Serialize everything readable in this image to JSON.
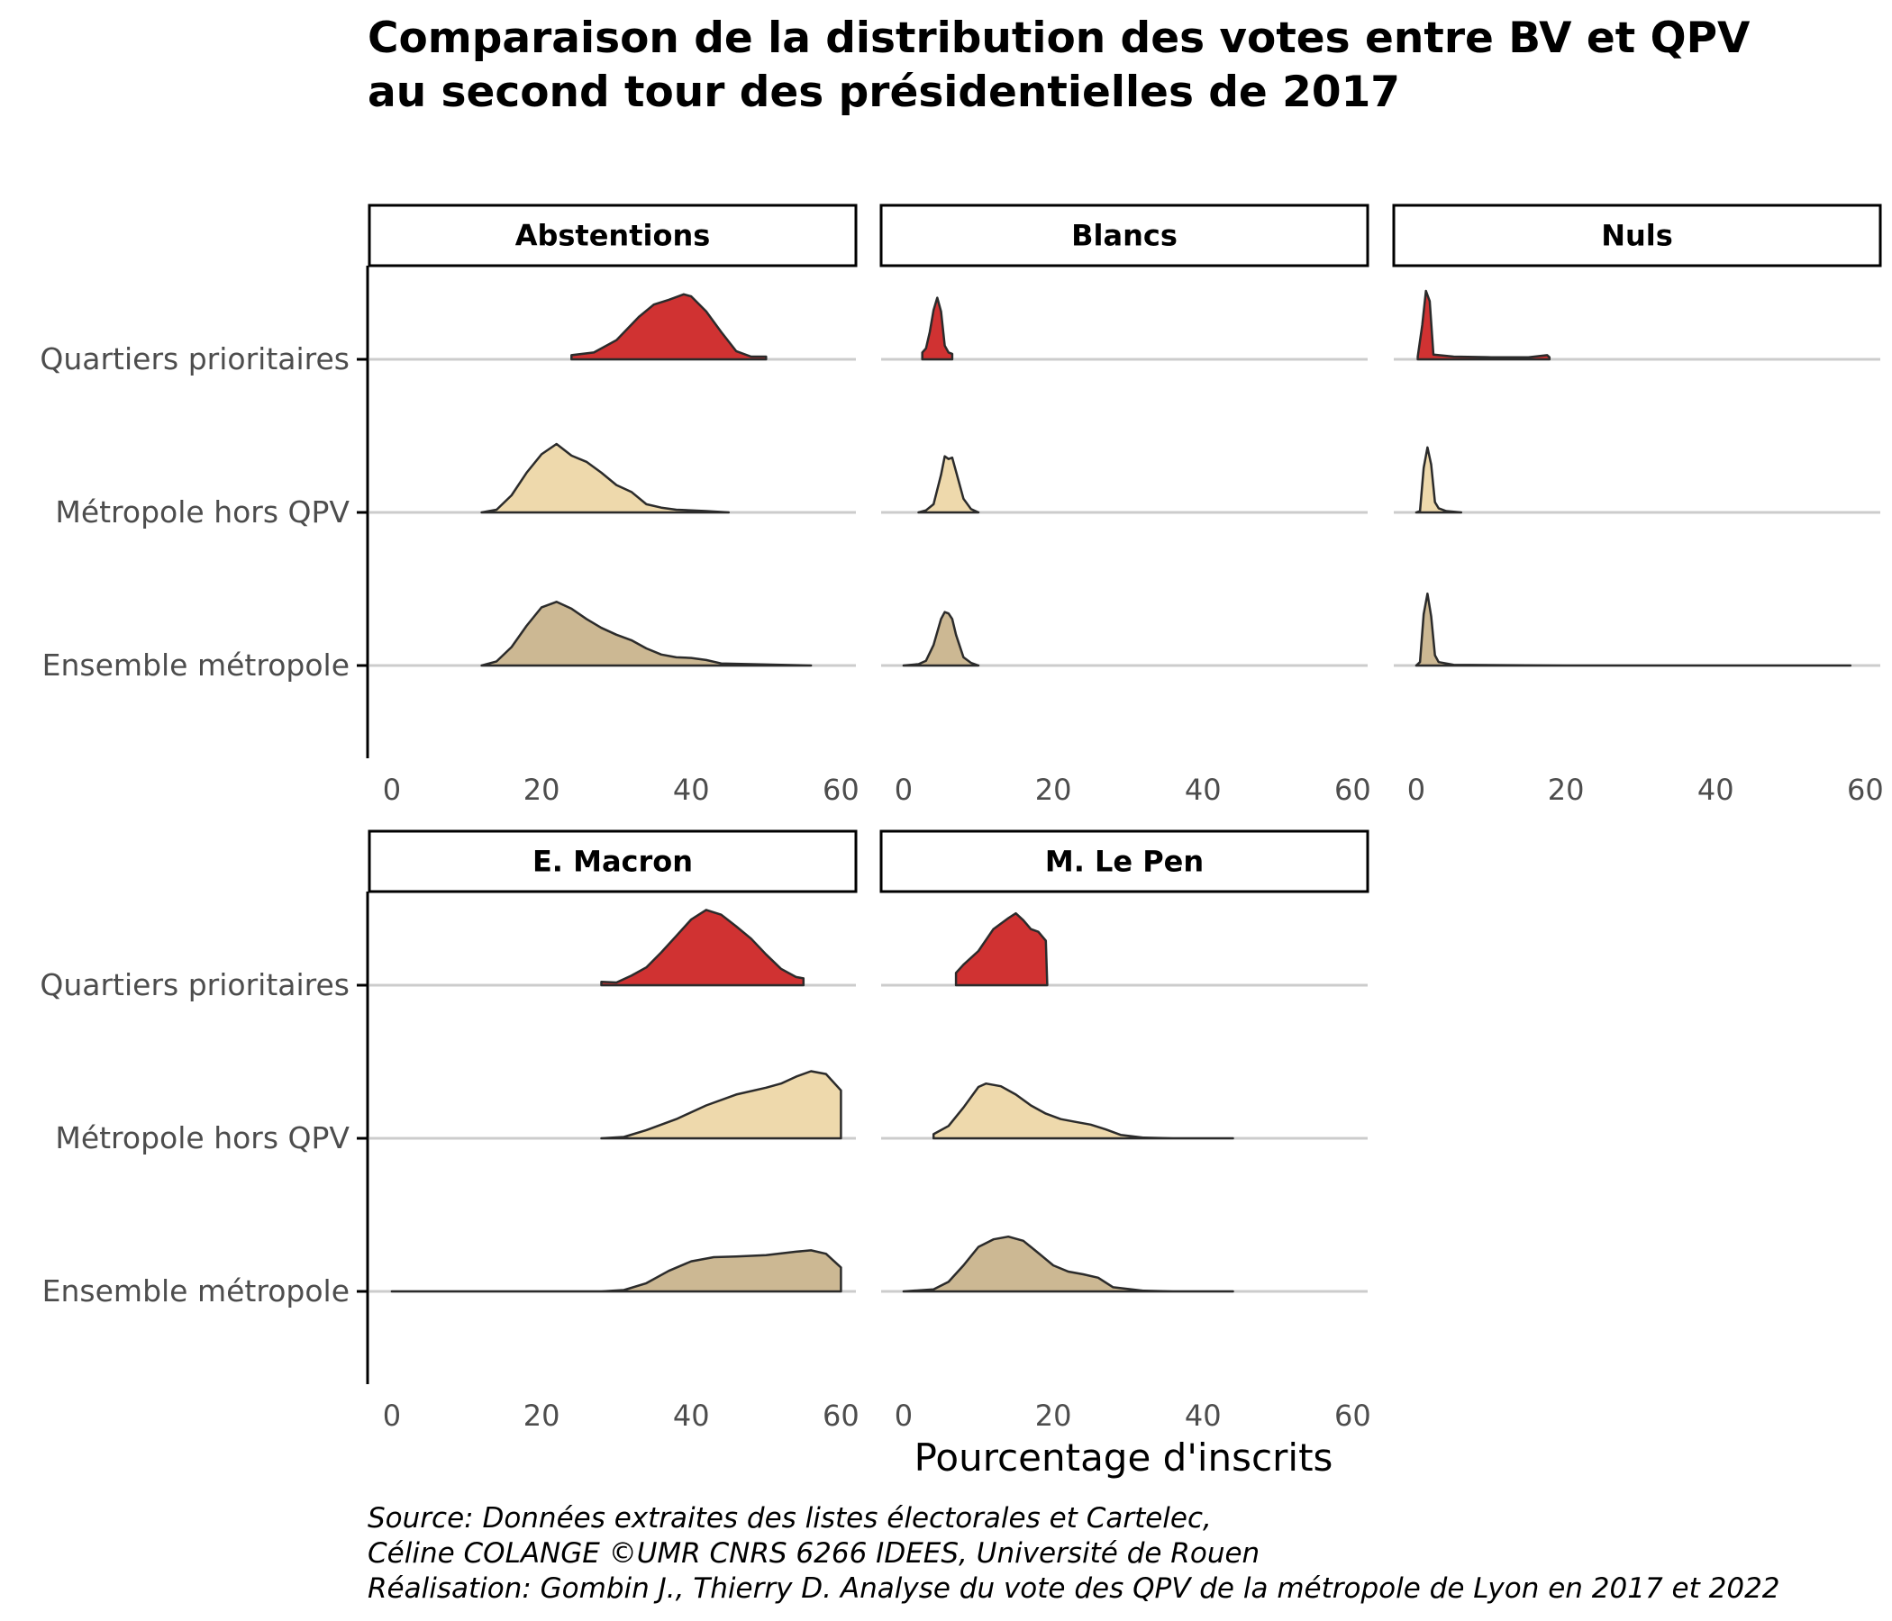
{
  "chart_data": {
    "type": "ridgeline-density",
    "title": "Comparaison de la distribution des votes entre BV et QPV",
    "title_line2": "au second tour des présidentielles de 2017",
    "xlabel": "Pourcentage d'inscrits",
    "ylabel": "",
    "xlim": [
      -3,
      62
    ],
    "x_ticks": [
      "0",
      "20",
      "40",
      "60"
    ],
    "x_tick_values": [
      0,
      20,
      40,
      60
    ],
    "grid": "horizontal baselines",
    "legend": "none",
    "caption": [
      "Source: Données extraites des listes électorales et Cartelec,",
      "Céline COLANGE ©UMR CNRS 6266 IDEES, Université de Rouen",
      "Réalisation: Gombin J., Thierry D. Analyse du vote des QPV de la métropole de Lyon en 2017 et 2022"
    ],
    "categories": [
      "Quartiers prioritaires",
      "Métropole hors QPV",
      "Ensemble métropole"
    ],
    "colors": {
      "Quartiers prioritaires": "#d03232",
      "Métropole hors QPV": "#eed9ac",
      "Ensemble métropole": "#ccb893",
      "outline": "#2b2b2b",
      "baseline": "#cccccc",
      "axis": "#000000"
    },
    "panels": [
      {
        "name": "Abstentions",
        "series": [
          {
            "category": "Quartiers prioritaires",
            "points": [
              [
                24,
                0.06
              ],
              [
                27,
                0.1
              ],
              [
                30,
                0.28
              ],
              [
                33,
                0.62
              ],
              [
                35,
                0.8
              ],
              [
                37,
                0.87
              ],
              [
                39,
                0.95
              ],
              [
                40,
                0.92
              ],
              [
                42,
                0.7
              ],
              [
                44,
                0.4
              ],
              [
                46,
                0.12
              ],
              [
                48,
                0.04
              ],
              [
                50,
                0.04
              ]
            ]
          },
          {
            "category": "Métropole hors QPV",
            "points": [
              [
                12,
                0.0
              ],
              [
                14,
                0.04
              ],
              [
                16,
                0.25
              ],
              [
                18,
                0.58
              ],
              [
                20,
                0.85
              ],
              [
                22,
                1.0
              ],
              [
                24,
                0.83
              ],
              [
                26,
                0.74
              ],
              [
                28,
                0.58
              ],
              [
                30,
                0.4
              ],
              [
                32,
                0.3
              ],
              [
                34,
                0.12
              ],
              [
                36,
                0.07
              ],
              [
                38,
                0.04
              ],
              [
                42,
                0.02
              ],
              [
                45,
                0.0
              ]
            ]
          },
          {
            "category": "Ensemble métropole",
            "points": [
              [
                12,
                0.0
              ],
              [
                14,
                0.06
              ],
              [
                16,
                0.27
              ],
              [
                18,
                0.58
              ],
              [
                20,
                0.85
              ],
              [
                22,
                0.93
              ],
              [
                24,
                0.83
              ],
              [
                26,
                0.68
              ],
              [
                28,
                0.55
              ],
              [
                30,
                0.45
              ],
              [
                32,
                0.37
              ],
              [
                34,
                0.25
              ],
              [
                36,
                0.16
              ],
              [
                38,
                0.12
              ],
              [
                40,
                0.11
              ],
              [
                42,
                0.08
              ],
              [
                44,
                0.03
              ],
              [
                48,
                0.02
              ],
              [
                52,
                0.01
              ],
              [
                56,
                0.0
              ]
            ]
          }
        ]
      },
      {
        "name": "Blancs",
        "series": [
          {
            "category": "Quartiers prioritaires",
            "points": [
              [
                2.5,
                0.1
              ],
              [
                3,
                0.16
              ],
              [
                3.5,
                0.4
              ],
              [
                4,
                0.72
              ],
              [
                4.5,
                0.9
              ],
              [
                5,
                0.7
              ],
              [
                5.5,
                0.2
              ],
              [
                6,
                0.1
              ],
              [
                6.5,
                0.08
              ]
            ]
          },
          {
            "category": "Métropole hors QPV",
            "points": [
              [
                2,
                0.0
              ],
              [
                3,
                0.03
              ],
              [
                4,
                0.12
              ],
              [
                5,
                0.55
              ],
              [
                5.5,
                0.82
              ],
              [
                6,
                0.78
              ],
              [
                6.5,
                0.8
              ],
              [
                7,
                0.6
              ],
              [
                8,
                0.2
              ],
              [
                9,
                0.05
              ],
              [
                10,
                0.0
              ]
            ]
          },
          {
            "category": "Ensemble métropole",
            "points": [
              [
                0,
                0.0
              ],
              [
                2,
                0.02
              ],
              [
                3,
                0.07
              ],
              [
                4,
                0.3
              ],
              [
                5,
                0.68
              ],
              [
                5.5,
                0.78
              ],
              [
                6,
                0.76
              ],
              [
                6.5,
                0.68
              ],
              [
                7,
                0.45
              ],
              [
                8,
                0.12
              ],
              [
                9,
                0.04
              ],
              [
                10,
                0.0
              ]
            ]
          }
        ]
      },
      {
        "name": "Nuls",
        "series": [
          {
            "category": "Quartiers prioritaires",
            "points": [
              [
                0.2,
                0.04
              ],
              [
                0.8,
                0.5
              ],
              [
                1.3,
                1.0
              ],
              [
                1.8,
                0.85
              ],
              [
                2.3,
                0.07
              ],
              [
                5,
                0.04
              ],
              [
                10,
                0.03
              ],
              [
                15,
                0.03
              ],
              [
                17.5,
                0.06
              ],
              [
                17.8,
                0.03
              ]
            ]
          },
          {
            "category": "Métropole hors QPV",
            "points": [
              [
                0,
                0.0
              ],
              [
                0.5,
                0.02
              ],
              [
                1,
                0.65
              ],
              [
                1.5,
                0.95
              ],
              [
                2,
                0.7
              ],
              [
                2.5,
                0.15
              ],
              [
                3,
                0.06
              ],
              [
                4,
                0.02
              ],
              [
                6,
                0.0
              ]
            ]
          },
          {
            "category": "Ensemble métropole",
            "points": [
              [
                0,
                0.0
              ],
              [
                0.5,
                0.05
              ],
              [
                1,
                0.75
              ],
              [
                1.5,
                1.05
              ],
              [
                2,
                0.72
              ],
              [
                2.5,
                0.15
              ],
              [
                3,
                0.05
              ],
              [
                5,
                0.01
              ],
              [
                20,
                0.0
              ],
              [
                58,
                0.0
              ]
            ]
          }
        ]
      },
      {
        "name": "E. Macron",
        "series": [
          {
            "category": "Quartiers prioritaires",
            "points": [
              [
                28,
                0.05
              ],
              [
                30,
                0.04
              ],
              [
                32,
                0.14
              ],
              [
                34,
                0.26
              ],
              [
                36,
                0.48
              ],
              [
                38,
                0.72
              ],
              [
                40,
                0.96
              ],
              [
                42,
                1.1
              ],
              [
                44,
                1.03
              ],
              [
                46,
                0.86
              ],
              [
                48,
                0.68
              ],
              [
                50,
                0.45
              ],
              [
                52,
                0.24
              ],
              [
                54,
                0.12
              ],
              [
                55,
                0.1
              ]
            ]
          },
          {
            "category": "Métropole hors QPV",
            "points": [
              [
                28,
                0.0
              ],
              [
                31,
                0.02
              ],
              [
                34,
                0.12
              ],
              [
                38,
                0.28
              ],
              [
                42,
                0.48
              ],
              [
                46,
                0.64
              ],
              [
                50,
                0.74
              ],
              [
                52,
                0.8
              ],
              [
                54,
                0.9
              ],
              [
                56,
                0.98
              ],
              [
                58,
                0.94
              ],
              [
                60,
                0.7
              ]
            ]
          },
          {
            "category": "Ensemble métropole",
            "points": [
              [
                0,
                0.0
              ],
              [
                10,
                0.0
              ],
              [
                20,
                0.0
              ],
              [
                28,
                0.0
              ],
              [
                31,
                0.02
              ],
              [
                34,
                0.12
              ],
              [
                37,
                0.3
              ],
              [
                40,
                0.44
              ],
              [
                43,
                0.5
              ],
              [
                46,
                0.51
              ],
              [
                50,
                0.53
              ],
              [
                54,
                0.58
              ],
              [
                56,
                0.6
              ],
              [
                58,
                0.55
              ],
              [
                60,
                0.35
              ]
            ]
          }
        ]
      },
      {
        "name": "M. Le Pen",
        "series": [
          {
            "category": "Quartiers prioritaires",
            "points": [
              [
                7,
                0.18
              ],
              [
                8,
                0.3
              ],
              [
                10,
                0.5
              ],
              [
                12,
                0.82
              ],
              [
                14,
                0.98
              ],
              [
                15,
                1.05
              ],
              [
                16,
                0.95
              ],
              [
                17,
                0.82
              ],
              [
                18,
                0.78
              ],
              [
                19,
                0.65
              ],
              [
                19.2,
                0.0
              ]
            ]
          },
          {
            "category": "Métropole hors QPV",
            "points": [
              [
                4,
                0.06
              ],
              [
                6,
                0.18
              ],
              [
                8,
                0.45
              ],
              [
                10,
                0.75
              ],
              [
                11,
                0.8
              ],
              [
                13,
                0.76
              ],
              [
                15,
                0.64
              ],
              [
                17,
                0.48
              ],
              [
                19,
                0.36
              ],
              [
                21,
                0.28
              ],
              [
                23,
                0.24
              ],
              [
                25,
                0.2
              ],
              [
                27,
                0.13
              ],
              [
                29,
                0.05
              ],
              [
                32,
                0.01
              ],
              [
                36,
                0.0
              ],
              [
                44,
                0.0
              ]
            ]
          },
          {
            "category": "Ensemble métropole",
            "points": [
              [
                0,
                0.0
              ],
              [
                4,
                0.03
              ],
              [
                6,
                0.14
              ],
              [
                8,
                0.38
              ],
              [
                10,
                0.65
              ],
              [
                12,
                0.76
              ],
              [
                14,
                0.8
              ],
              [
                16,
                0.74
              ],
              [
                18,
                0.56
              ],
              [
                20,
                0.38
              ],
              [
                22,
                0.29
              ],
              [
                24,
                0.25
              ],
              [
                26,
                0.2
              ],
              [
                28,
                0.06
              ],
              [
                32,
                0.01
              ],
              [
                36,
                0.0
              ],
              [
                44,
                0.0
              ]
            ]
          }
        ]
      }
    ]
  }
}
